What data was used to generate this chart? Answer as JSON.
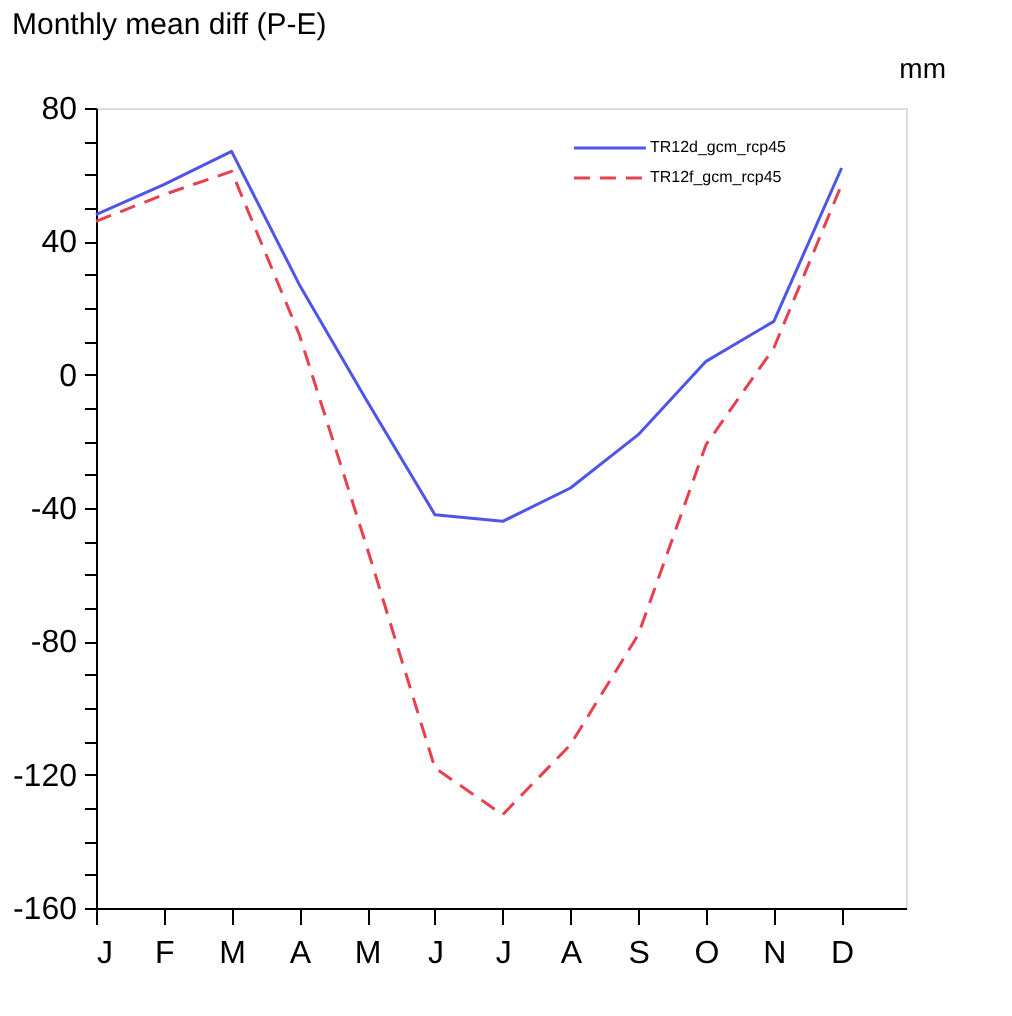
{
  "chart_data": {
    "type": "line",
    "title": "Monthly mean diff (P-E)",
    "annotations": [
      "mm"
    ],
    "categories": [
      "J",
      "F",
      "M",
      "A",
      "M",
      "J",
      "J",
      "A",
      "S",
      "O",
      "N",
      "D"
    ],
    "ylim": [
      -160,
      80
    ],
    "yticks": [
      -160,
      {
        "value": -150,
        "label": null
      },
      {
        "value": -140,
        "label": null
      },
      {
        "value": -130,
        "label": null
      },
      -120,
      {
        "value": -110,
        "label": null
      },
      {
        "value": -100,
        "label": null
      },
      {
        "value": -90,
        "label": null
      },
      -80,
      {
        "value": -70,
        "label": null
      },
      {
        "value": -60,
        "label": null
      },
      {
        "value": -50,
        "label": null
      },
      -40,
      {
        "value": -30,
        "label": null
      },
      {
        "value": -20,
        "label": null
      },
      {
        "value": -10,
        "label": null
      },
      0,
      {
        "value": 10,
        "label": null
      },
      {
        "value": 20,
        "label": null
      },
      {
        "value": 30,
        "label": null
      },
      40,
      {
        "value": 50,
        "label": null
      },
      {
        "value": 60,
        "label": null
      },
      {
        "value": 70,
        "label": null
      },
      80
    ],
    "grid": false,
    "legend": "top right",
    "marker": "none",
    "series": [
      {
        "name": "TR12d_gcm_rcp45",
        "color": "#4f55e8",
        "line_style": "solid",
        "values": [
          48,
          57,
          67,
          27,
          -8,
          -42,
          -44,
          -34,
          -18,
          4,
          16,
          62
        ]
      },
      {
        "name": "TR12f_gcm_rcp45",
        "color": "#e8404f",
        "line_style": "dashed",
        "values": [
          46,
          54,
          61,
          12,
          -52,
          -118,
          -132,
          -111,
          -78,
          -21,
          8,
          57
        ]
      }
    ]
  }
}
